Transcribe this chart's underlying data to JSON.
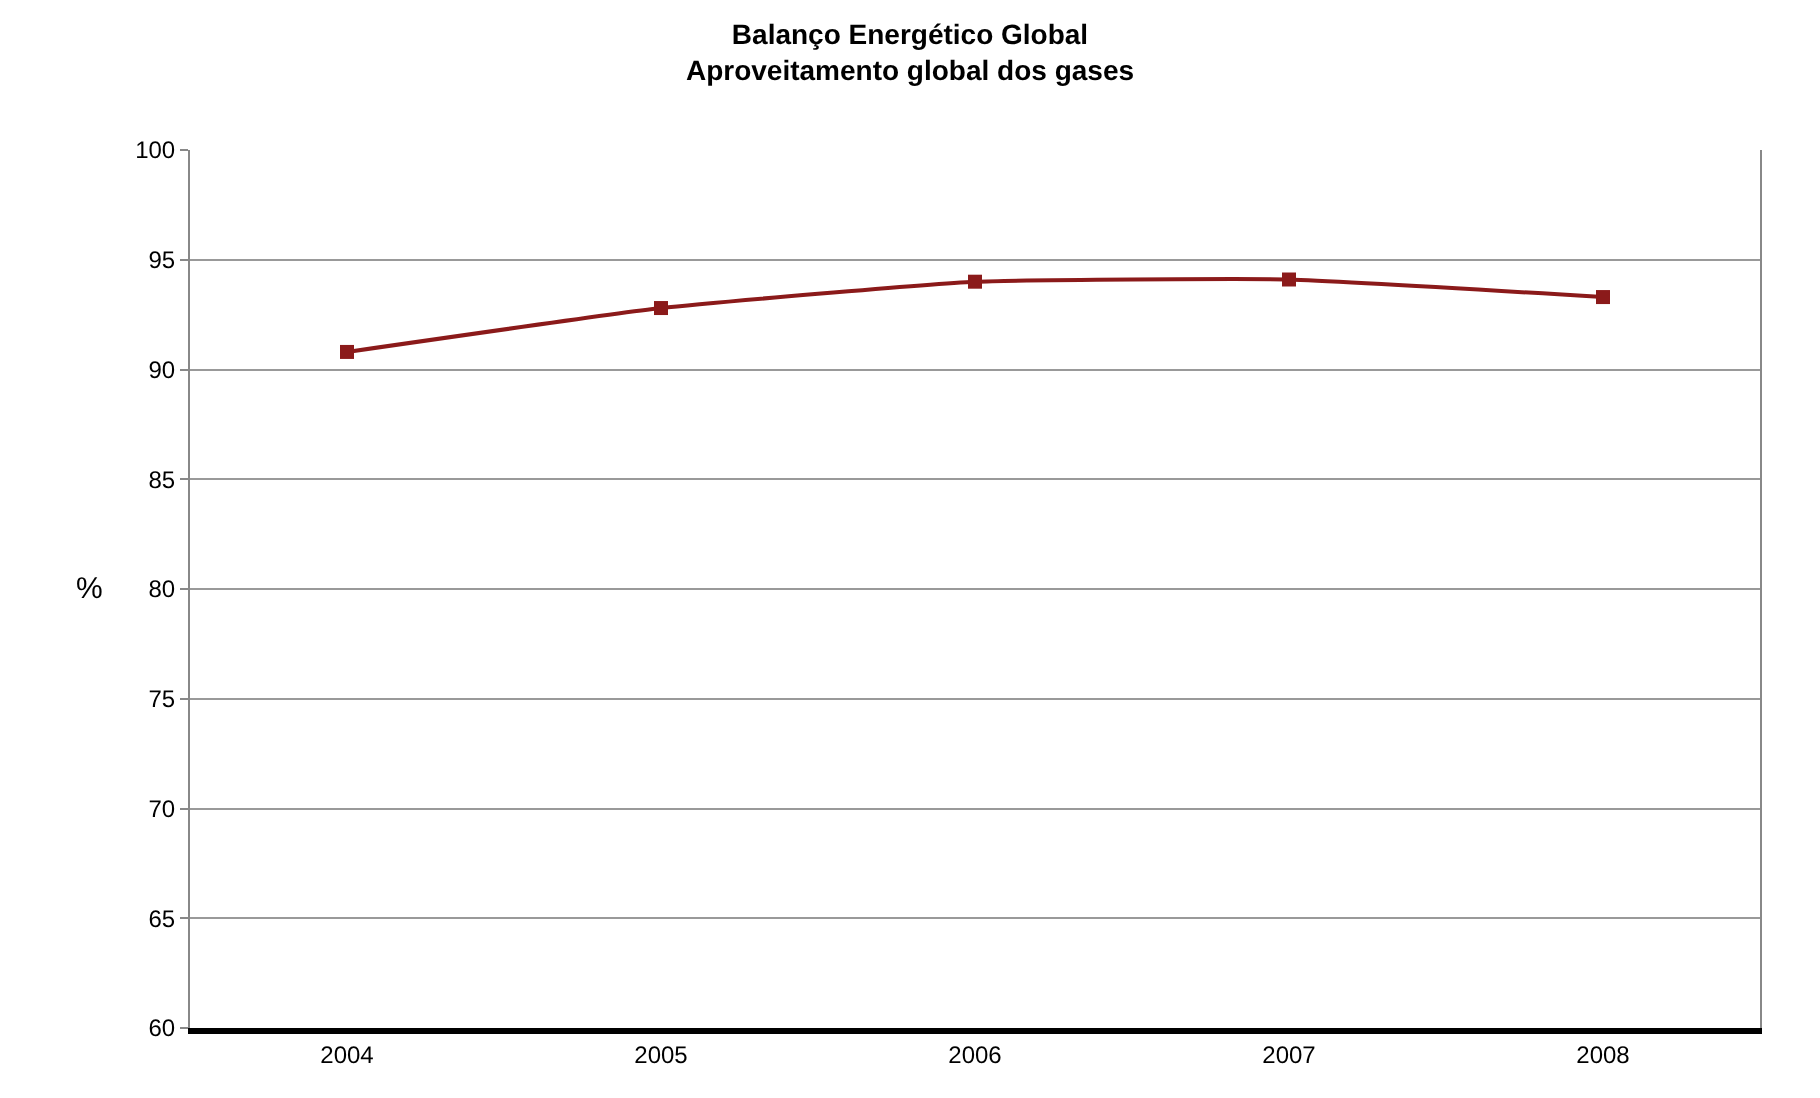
{
  "chart_data": {
    "type": "line",
    "title": "Balanço Energético Global\nAproveitamento global dos gases",
    "ylabel": "%",
    "categories": [
      "2004",
      "2005",
      "2006",
      "2007",
      "2008"
    ],
    "series": [
      {
        "color": "#8b1a1a",
        "values": [
          90.8,
          92.8,
          94.0,
          94.1,
          93.3
        ]
      }
    ],
    "ylim": [
      60,
      100
    ],
    "yticks": [
      60,
      65,
      70,
      75,
      80,
      85,
      90,
      95,
      100
    ],
    "grid": "y",
    "marker": "square",
    "legend": false
  }
}
